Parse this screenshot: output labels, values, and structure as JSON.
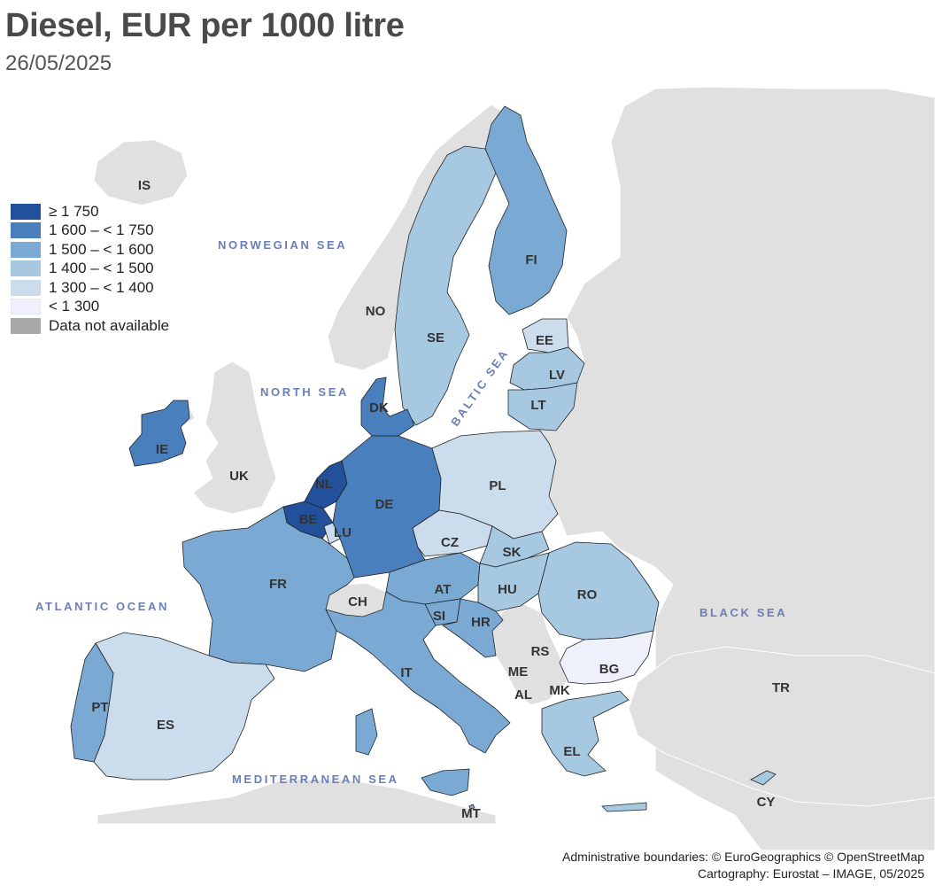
{
  "title": "Diesel, EUR per 1000 litre",
  "date": "26/05/2025",
  "legend": [
    {
      "label": "≥ 1 750",
      "color": "#23509b"
    },
    {
      "label": "1 600 – < 1 750",
      "color": "#4a7fbd"
    },
    {
      "label": "1 500 – < 1 600",
      "color": "#7aaad4"
    },
    {
      "label": "1 400 – < 1 500",
      "color": "#a6c8e1"
    },
    {
      "label": "1 300 – < 1 400",
      "color": "#cbdced"
    },
    {
      "label": "< 1 300",
      "color": "#eef1fb"
    },
    {
      "label": "Data not available",
      "color": "#a9a9a9"
    }
  ],
  "seas": {
    "norwegian": "NORWEGIAN SEA",
    "north": "NORTH SEA",
    "baltic": "BALTIC SEA",
    "atlantic": "ATLANTIC OCEAN",
    "black": "BLACK SEA",
    "mediterranean": "MEDITERRANEAN SEA"
  },
  "countries": {
    "IS": "IS",
    "NO": "NO",
    "SE": "SE",
    "FI": "FI",
    "EE": "EE",
    "LV": "LV",
    "LT": "LT",
    "DK": "DK",
    "IE": "IE",
    "UK": "UK",
    "NL": "NL",
    "BE": "BE",
    "LU": "LU",
    "DE": "DE",
    "PL": "PL",
    "CZ": "CZ",
    "SK": "SK",
    "FR": "FR",
    "CH": "CH",
    "AT": "AT",
    "HU": "HU",
    "RO": "RO",
    "SI": "SI",
    "HR": "HR",
    "RS": "RS",
    "ME": "ME",
    "AL": "AL",
    "MK": "MK",
    "BG": "BG",
    "IT": "IT",
    "PT": "PT",
    "ES": "ES",
    "EL": "EL",
    "TR": "TR",
    "MT": "MT",
    "CY": "CY"
  },
  "credits": {
    "line1": "Administrative boundaries: © EuroGeographics © OpenStreetMap",
    "line2": "Cartography: Eurostat – IMAGE, 05/2025"
  }
}
